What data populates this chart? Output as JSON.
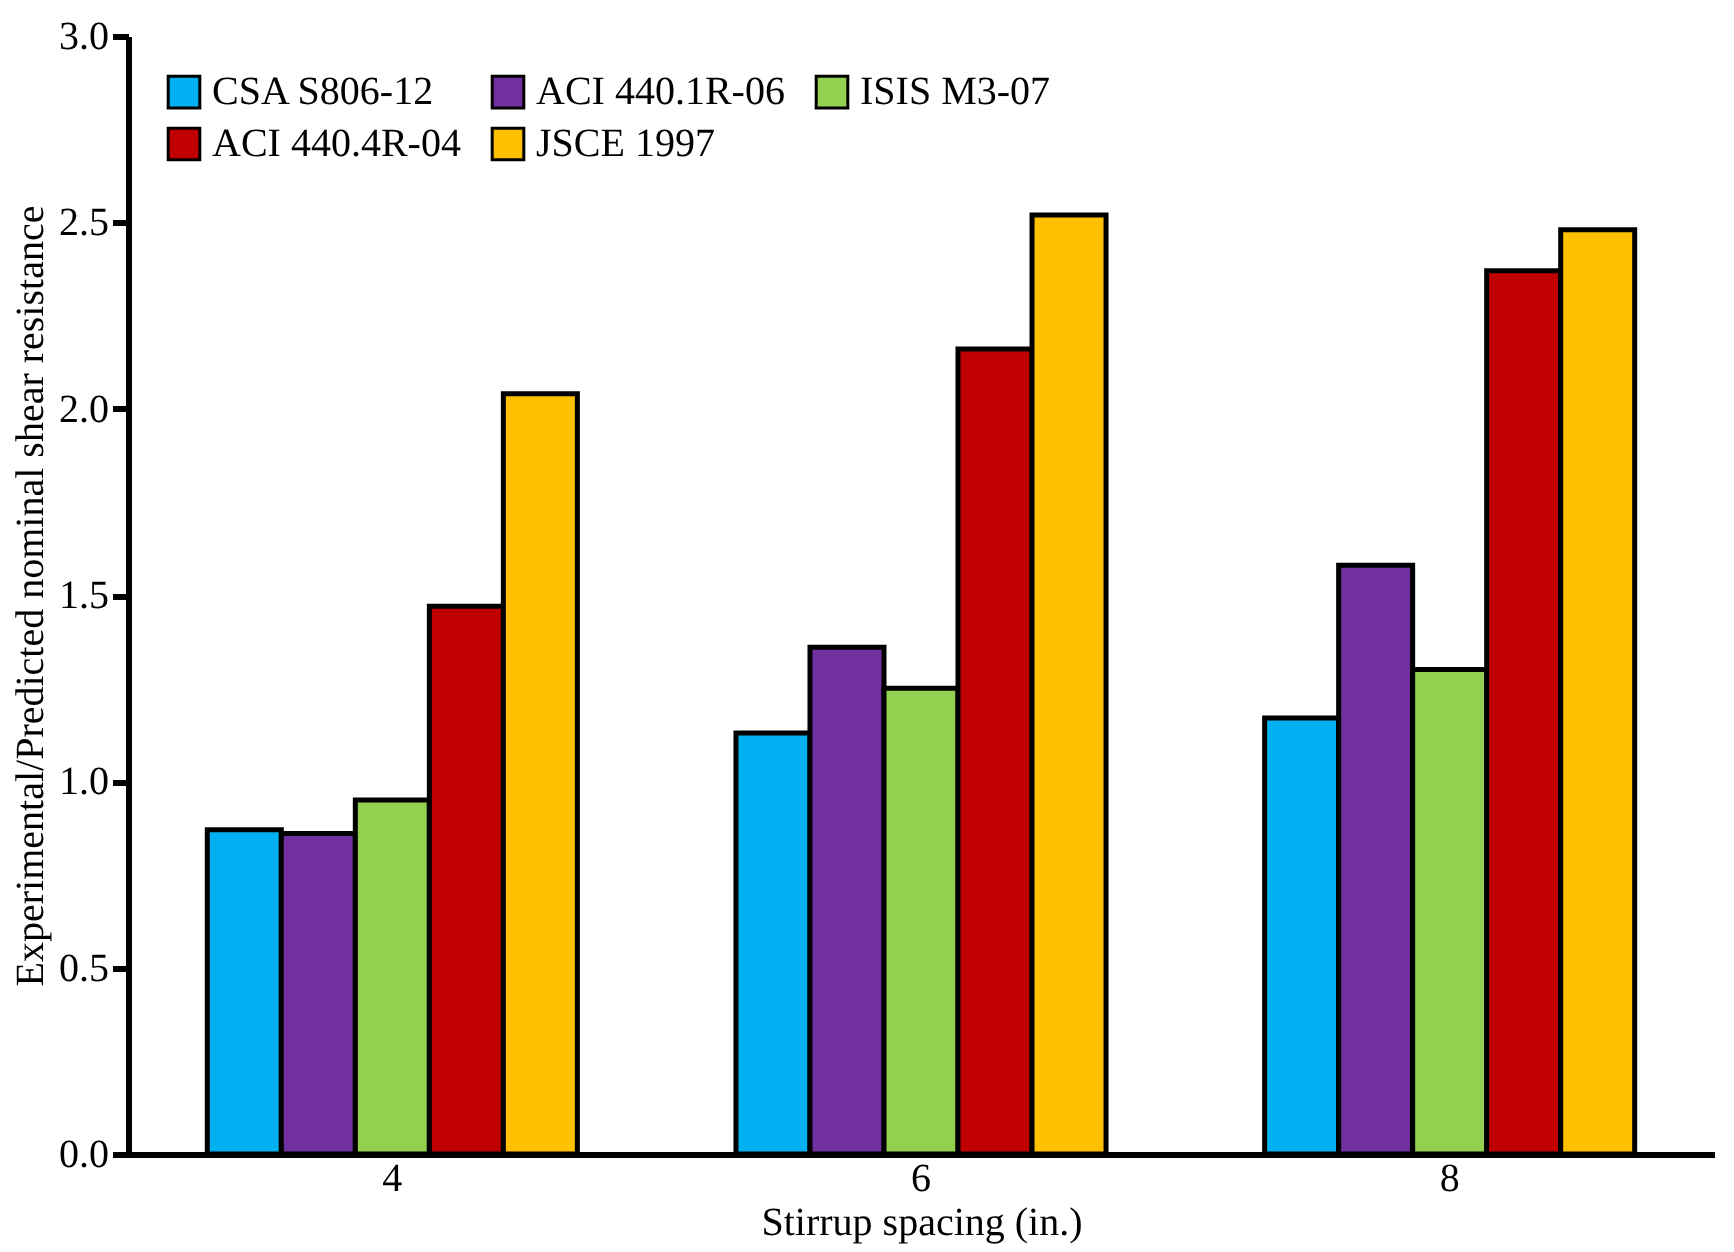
{
  "chart_data": {
    "type": "bar",
    "xlabel": "Stirrup spacing (in.)",
    "ylabel": "Experimental/Predicted nominal shear resistance",
    "categories": [
      "4",
      "6",
      "8"
    ],
    "series": [
      {
        "name": "CSA S806-12",
        "color": "#00b0f0",
        "values": [
          0.87,
          1.13,
          1.17
        ]
      },
      {
        "name": "ACI 440.1R-06",
        "color": "#7030a0",
        "values": [
          0.86,
          1.36,
          1.58
        ]
      },
      {
        "name": "ISIS M3-07",
        "color": "#92d050",
        "values": [
          0.95,
          1.25,
          1.3
        ]
      },
      {
        "name": "ACI 440.4R-04",
        "color": "#c00000",
        "values": [
          1.47,
          2.16,
          2.37
        ]
      },
      {
        "name": "JSCE 1997",
        "color": "#ffc000",
        "values": [
          2.04,
          2.52,
          2.48
        ]
      }
    ],
    "ylim": [
      0,
      3
    ],
    "yticks": [
      {
        "value": 0,
        "label": "0.0"
      },
      {
        "value": 0.5,
        "label": "0.5"
      },
      {
        "value": 1,
        "label": "1.0"
      },
      {
        "value": 1.5,
        "label": "1.5"
      },
      {
        "value": 2,
        "label": "2.0"
      },
      {
        "value": 2.5,
        "label": "2.5"
      },
      {
        "value": 3,
        "label": "3.0"
      }
    ],
    "grid": false,
    "legend": "top left"
  }
}
